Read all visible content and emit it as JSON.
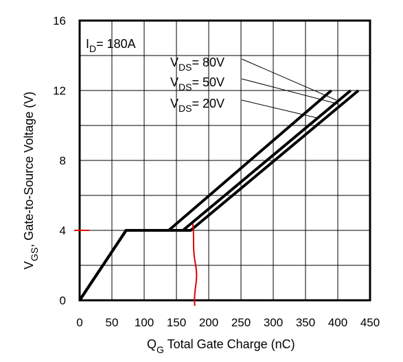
{
  "chart_data": {
    "type": "line",
    "title": "",
    "xlabel": {
      "main": "Q",
      "sub": "G",
      "rest": " Total Gate Charge (nC)"
    },
    "ylabel": {
      "main": "V",
      "sub": "GS",
      "rest": ", Gate-to-Source Voltage (V)"
    },
    "xlim": [
      0,
      450
    ],
    "ylim": [
      0,
      16
    ],
    "xticks": [
      0,
      50,
      100,
      150,
      200,
      250,
      300,
      350,
      400,
      450
    ],
    "yticks": [
      0,
      4,
      8,
      12,
      16
    ],
    "grid": true,
    "condition": {
      "main": "I",
      "sub": "D",
      "rest": "= 180A"
    },
    "series": [
      {
        "name": "V_DS = 80V",
        "label_main": "V",
        "label_sub": "DS",
        "label_rest": "= 80V",
        "x": [
          0,
          72,
          172,
          432
        ],
        "y": [
          0,
          4,
          4,
          12
        ]
      },
      {
        "name": "V_DS = 50V",
        "label_main": "V",
        "label_sub": "DS",
        "label_rest": "= 50V",
        "x": [
          0,
          72,
          160,
          420
        ],
        "y": [
          0,
          4,
          4,
          12
        ]
      },
      {
        "name": "V_DS = 20V",
        "label_main": "V",
        "label_sub": "DS",
        "label_rest": "= 20V",
        "x": [
          0,
          72,
          138,
          390
        ],
        "y": [
          0,
          4,
          4,
          12
        ]
      }
    ],
    "annotations": {
      "red_marker_y": 4,
      "red_marker_x": 172,
      "color": "#e00000"
    }
  }
}
